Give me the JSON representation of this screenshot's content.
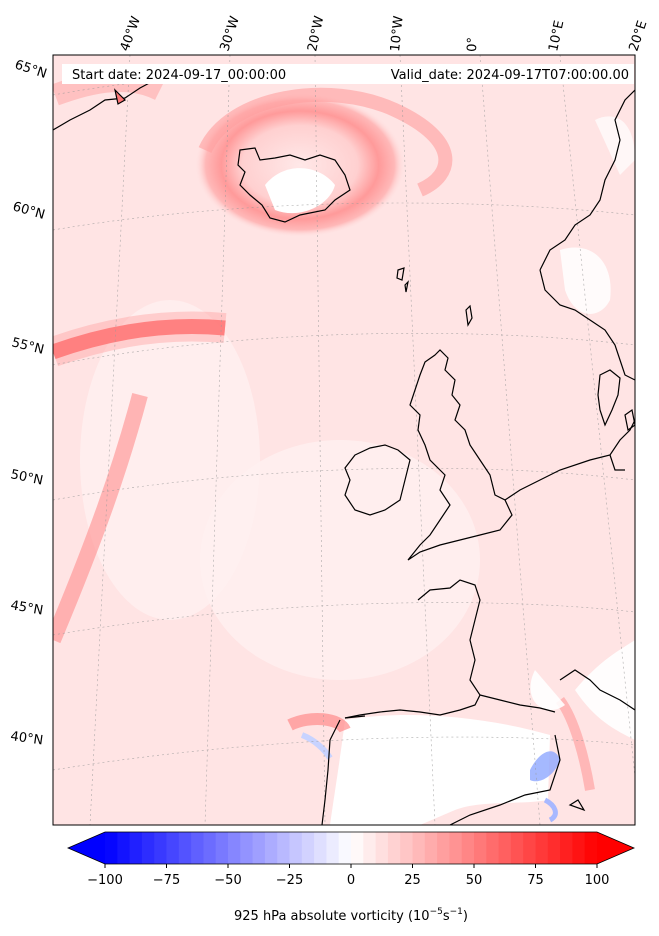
{
  "header": {
    "start_date": "Start date: 2024-09-17_00:00:00",
    "valid_date": "Valid_date: 2024-09-17T07:00:00.00"
  },
  "longitude_labels": [
    "40°W",
    "30°W",
    "20°W",
    "10°W",
    "0°",
    "10°E",
    "20°E"
  ],
  "latitude_labels": [
    "65°N",
    "60°N",
    "55°N",
    "50°N",
    "45°N",
    "40°N"
  ],
  "colorbar": {
    "ticks": [
      "−100",
      "−75",
      "−50",
      "−25",
      "0",
      "25",
      "50",
      "75",
      "100"
    ],
    "label": "925 hPa absolute vorticity (10",
    "label_exp1": "−5",
    "label_mid": "s",
    "label_exp2": "−1",
    "label_end": ")",
    "range": [
      -100,
      100
    ],
    "colormap": "bwr",
    "extend": "both",
    "low_color": "#0000ff",
    "mid_color": "#ffffff",
    "high_color": "#ff0000"
  },
  "field": {
    "background_value": 12,
    "features": [
      {
        "name": "iceland-cyclone-ring",
        "value": 45
      },
      {
        "name": "atlantic-jet-band",
        "value": 70
      },
      {
        "name": "curved-western-band",
        "value": 40
      },
      {
        "name": "iberia-anticyclonic-patch",
        "value": -30
      },
      {
        "name": "mediterranean-strip",
        "value": -55
      }
    ]
  }
}
